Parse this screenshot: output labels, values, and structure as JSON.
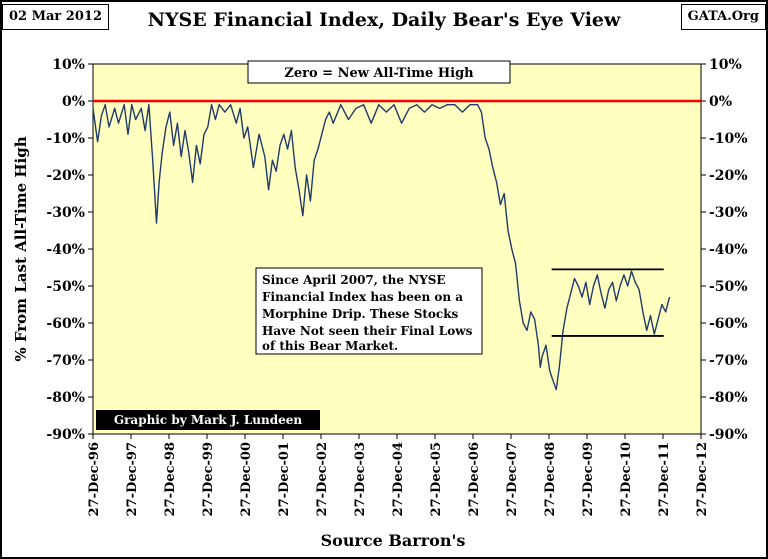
{
  "header": {
    "date": "02 Mar 2012",
    "title": "NYSE Financial Index, Daily Bear's Eye View",
    "brand": "GATA.Org"
  },
  "chart_data": {
    "type": "line",
    "title": "NYSE Financial Index, Daily Bear's Eye View",
    "xlabel": "Source Barron's",
    "ylabel": "% From Last All-Time High",
    "ylim": [
      -90,
      10
    ],
    "y_ticks": [
      10,
      0,
      -10,
      -20,
      -30,
      -40,
      -50,
      -60,
      -70,
      -80,
      -90
    ],
    "y_tick_labels": [
      "10%",
      "0%",
      "-10%",
      "-20%",
      "-30%",
      "-40%",
      "-50%",
      "-60%",
      "-70%",
      "-80%",
      "-90%"
    ],
    "x_tick_labels": [
      "27-Dec-96",
      "27-Dec-97",
      "27-Dec-98",
      "27-Dec-99",
      "27-Dec-00",
      "27-Dec-01",
      "27-Dec-02",
      "27-Dec-03",
      "27-Dec-04",
      "27-Dec-05",
      "27-Dec-06",
      "27-Dec-07",
      "27-Dec-08",
      "27-Dec-09",
      "27-Dec-10",
      "27-Dec-11",
      "27-Dec-12"
    ],
    "xlim": [
      1996.98,
      2012.98
    ],
    "grid": false,
    "colors": {
      "plot_bg": "#ffffc0",
      "series": "#1f3b6b",
      "zero_line": "#ff0000"
    },
    "series": [
      {
        "x": [
          1996.98,
          1997.1,
          1997.2,
          1997.3,
          1997.4,
          1997.55,
          1997.65,
          1997.8,
          1997.9,
          1998.0,
          1998.1,
          1998.25,
          1998.35,
          1998.45,
          1998.55,
          1998.65,
          1998.72,
          1998.8,
          1998.9,
          1999.0,
          1999.1,
          1999.2,
          1999.3,
          1999.4,
          1999.5,
          1999.6,
          1999.7,
          1999.8,
          1999.9,
          2000.0,
          2000.1,
          2000.2,
          2000.3,
          2000.45,
          2000.6,
          2000.75,
          2000.85,
          2000.95,
          2001.05,
          2001.2,
          2001.35,
          2001.5,
          2001.6,
          2001.7,
          2001.8,
          2001.9,
          2002.0,
          2002.1,
          2002.2,
          2002.3,
          2002.4,
          2002.5,
          2002.6,
          2002.7,
          2002.8,
          2002.9,
          2003.0,
          2003.1,
          2003.2,
          2003.3,
          2003.5,
          2003.7,
          2003.9,
          2004.1,
          2004.3,
          2004.5,
          2004.7,
          2004.9,
          2005.1,
          2005.3,
          2005.5,
          2005.7,
          2005.9,
          2006.1,
          2006.3,
          2006.5,
          2006.7,
          2006.9,
          2007.1,
          2007.2,
          2007.3,
          2007.4,
          2007.5,
          2007.6,
          2007.7,
          2007.8,
          2007.9,
          2008.0,
          2008.1,
          2008.2,
          2008.3,
          2008.4,
          2008.5,
          2008.6,
          2008.7,
          2008.75,
          2008.8,
          2008.9,
          2009.0,
          2009.1,
          2009.17,
          2009.25,
          2009.35,
          2009.45,
          2009.55,
          2009.65,
          2009.75,
          2009.85,
          2009.95,
          2010.05,
          2010.15,
          2010.25,
          2010.35,
          2010.45,
          2010.55,
          2010.65,
          2010.75,
          2010.85,
          2010.95,
          2011.05,
          2011.15,
          2011.25,
          2011.35,
          2011.45,
          2011.55,
          2011.65,
          2011.75,
          2011.85,
          2011.95,
          2012.05,
          2012.15
        ],
        "values": [
          -2,
          -11,
          -4,
          -1,
          -7,
          -2,
          -6,
          -1,
          -9,
          -1,
          -5,
          -2,
          -8,
          -1,
          -16,
          -33,
          -22,
          -14,
          -7,
          -3,
          -12,
          -6,
          -15,
          -8,
          -14,
          -22,
          -12,
          -17,
          -9,
          -7,
          -1,
          -5,
          -1,
          -3,
          -1,
          -6,
          -2,
          -10,
          -7,
          -18,
          -9,
          -15,
          -24,
          -16,
          -19,
          -12,
          -9,
          -13,
          -8,
          -18,
          -24,
          -31,
          -20,
          -27,
          -16,
          -13,
          -9,
          -5,
          -3,
          -6,
          -1,
          -5,
          -2,
          -1,
          -6,
          -1,
          -3,
          -1,
          -6,
          -2,
          -1,
          -3,
          -1,
          -2,
          -1,
          -1,
          -3,
          -1,
          -1,
          -3,
          -10,
          -13,
          -18,
          -22,
          -28,
          -25,
          -35,
          -40,
          -44,
          -54,
          -60,
          -62,
          -57,
          -59,
          -66,
          -72,
          -69,
          -66,
          -73,
          -76,
          -78,
          -72,
          -62,
          -56,
          -52,
          -48,
          -50,
          -53,
          -49,
          -55,
          -50,
          -47,
          -52,
          -56,
          -51,
          -49,
          -54,
          -50,
          -47,
          -50,
          -46,
          -49,
          -51,
          -57,
          -62,
          -58,
          -63,
          -59,
          -55,
          -57,
          -53
        ]
      }
    ],
    "annotations": {
      "top_box": "Zero = New All-Time High",
      "note_lines": [
        "Since April 2007, the NYSE",
        "Financial Index has been on a",
        "Morphine Drip. These Stocks",
        "Have Not seen their Final Lows",
        "of this Bear Market."
      ],
      "credit": "Graphic by Mark J. Lundeen",
      "channel_top": {
        "x": [
          2009.05,
          2012.0
        ],
        "y": -45.5
      },
      "channel_bottom": {
        "x": [
          2009.05,
          2012.0
        ],
        "y": -63.5
      }
    }
  }
}
